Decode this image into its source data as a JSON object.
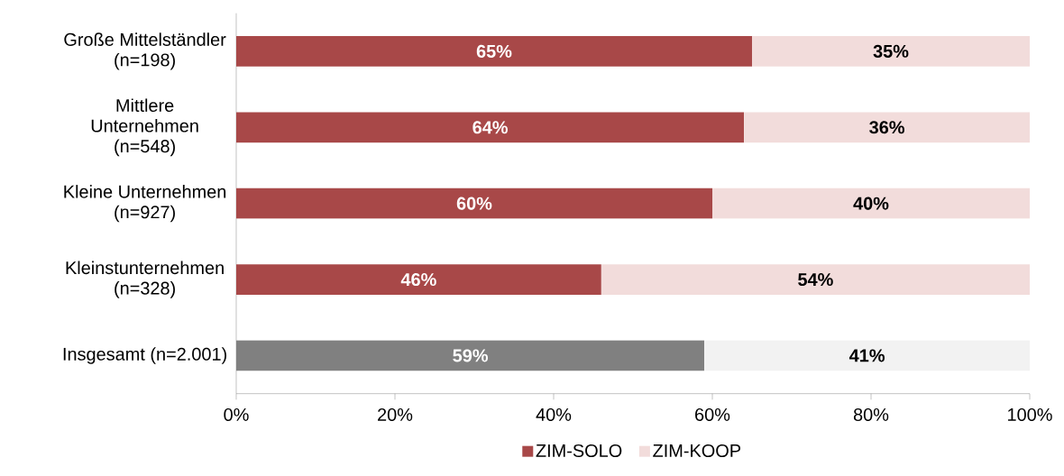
{
  "chart_data": {
    "type": "bar",
    "orientation": "horizontal",
    "stacked": true,
    "categories": [
      "Große Mittelständler (n=198)",
      "Mittlere Unternehmen (n=548)",
      "Kleine Unternehmen (n=927)",
      "Kleinstunternehmen (n=328)",
      "Insgesamt (n=2.001)"
    ],
    "series": [
      {
        "name": "ZIM-SOLO",
        "color": "#a84848",
        "colors": [
          "#a84848",
          "#a84848",
          "#a84848",
          "#a84848",
          "#808080"
        ],
        "values": [
          65,
          64,
          60,
          46,
          59
        ],
        "value_labels": [
          "65%",
          "64%",
          "60%",
          "46%",
          "59%"
        ]
      },
      {
        "name": "ZIM-KOOP",
        "color": "#f2dcdb",
        "colors": [
          "#f2dcdb",
          "#f2dcdb",
          "#f2dcdb",
          "#f2dcdb",
          "#f2f2f2"
        ],
        "values": [
          35,
          36,
          40,
          54,
          41
        ],
        "value_labels": [
          "35%",
          "36%",
          "40%",
          "54%",
          "41%"
        ]
      }
    ],
    "xlim": [
      0,
      100
    ],
    "xticks": [
      {
        "value": 0,
        "label": "0%"
      },
      {
        "value": 20,
        "label": "20%"
      },
      {
        "value": 40,
        "label": "40%"
      },
      {
        "value": 60,
        "label": "60%"
      },
      {
        "value": 80,
        "label": "80%"
      },
      {
        "value": 100,
        "label": "100%"
      }
    ],
    "grid": false,
    "legend": "bottom"
  }
}
